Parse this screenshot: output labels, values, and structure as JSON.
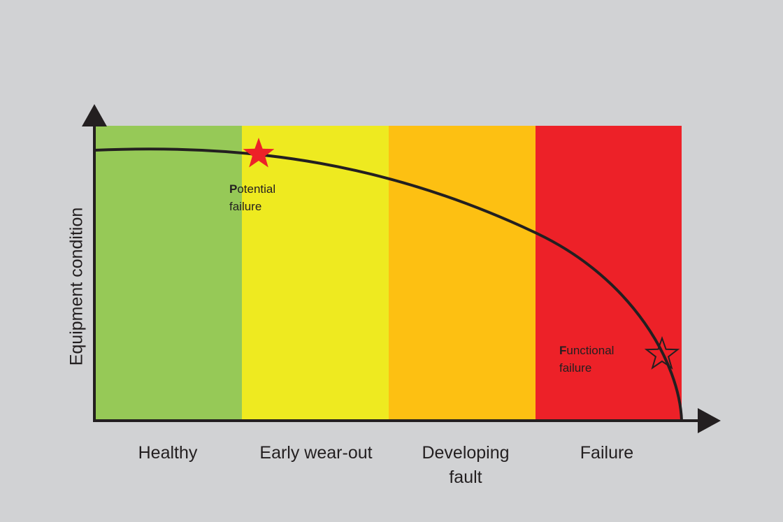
{
  "y_axis_label": "Equipment condition",
  "zones": [
    {
      "label": "Healthy",
      "color": "#96c957"
    },
    {
      "label": "Early wear-out",
      "color": "#eeea20"
    },
    {
      "label": "Developing\nfault",
      "color": "#fdc012"
    },
    {
      "label": "Failure",
      "color": "#ed2128"
    }
  ],
  "annotations": {
    "potential": {
      "initial": "P",
      "rest_line1": "otential",
      "line2": "failure",
      "marker_color": "#ed2128"
    },
    "functional": {
      "initial": "F",
      "rest_line1": "unctional",
      "line2": "failure",
      "marker_style": "outline"
    }
  },
  "colors": {
    "axis": "#231f20",
    "background": "#d1d2d4"
  }
}
